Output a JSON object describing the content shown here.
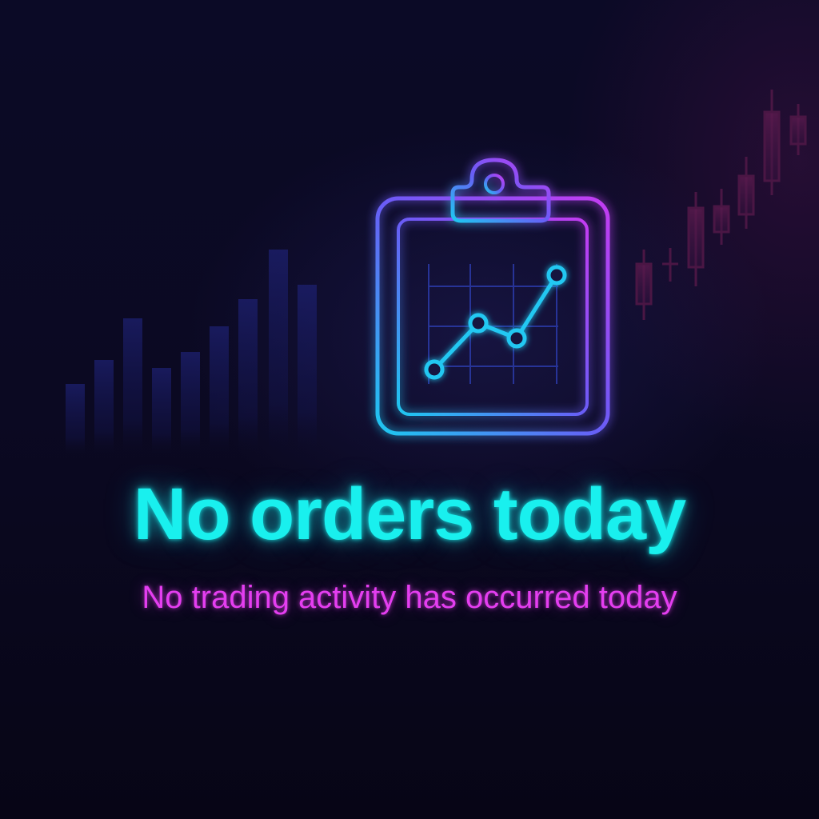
{
  "empty_state": {
    "icon": "clipboard-chart-icon",
    "title": "No orders today",
    "subtitle": "No trading activity has occurred today"
  },
  "theme": {
    "background": "#0a0820",
    "title_color": "#19f0ee",
    "subtitle_color": "#e43ef0",
    "icon_gradient_start": "#8a3cf5",
    "icon_gradient_end": "#1ec8f0",
    "chart_line_color": "#23c8f2"
  }
}
